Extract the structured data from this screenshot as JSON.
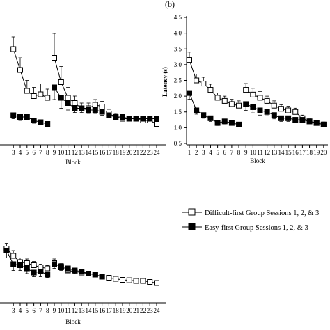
{
  "panel_b_label": "(b)",
  "legend": {
    "difficult": "Difficult-first Group Sessions 1, 2, & 3",
    "easy": "Easy-first Group Sessions 1, 2, & 3"
  },
  "colors": {
    "ink": "#000000",
    "open_fill": "#ffffff",
    "filled": "#000000"
  },
  "chart_data": [
    {
      "id": "panel-a-top",
      "type": "line",
      "xlabel": "Block",
      "ylabel": "",
      "xlim": [
        1,
        24
      ],
      "ylim": [
        0.5,
        4.5
      ],
      "x_ticks_shown": [
        3,
        4,
        5,
        6,
        7,
        8,
        9,
        10,
        11,
        12,
        13,
        14,
        15,
        16,
        17,
        18,
        19,
        20,
        21,
        22,
        23,
        24
      ],
      "series": [
        {
          "name": "Difficult-first Group Sessions 1, 2, & 3",
          "marker": "open-square",
          "segments": [
            {
              "x": [
                3,
                4,
                5,
                6,
                7,
                8
              ],
              "y": [
                3.25,
                2.65,
                2.05,
                1.9,
                1.95,
                1.85
              ],
              "err": [
                0.35,
                0.35,
                0.3,
                0.25,
                0.3,
                0.25
              ]
            },
            {
              "x": [
                9,
                10,
                11,
                12,
                13,
                14,
                15,
                16
              ],
              "y": [
                3.0,
                2.3,
                1.85,
                1.7,
                1.55,
                1.55,
                1.65,
                1.6
              ],
              "err": [
                0.7,
                0.45,
                0.3,
                0.2,
                0.15,
                0.15,
                0.15,
                0.15
              ]
            },
            {
              "x": [
                17,
                18,
                19,
                20,
                21,
                22,
                23,
                24
              ],
              "y": [
                1.4,
                1.3,
                1.25,
                1.25,
                1.25,
                1.2,
                1.2,
                1.1
              ],
              "err": [
                0.12,
                0.1,
                0.08,
                0.08,
                0.08,
                0.07,
                0.07,
                0.07
              ]
            }
          ]
        },
        {
          "name": "Easy-first Group Sessions 1, 2, & 3",
          "marker": "filled-square",
          "segments": [
            {
              "x": [
                3,
                4,
                5,
                6,
                7,
                8
              ],
              "y": [
                1.35,
                1.3,
                1.3,
                1.2,
                1.15,
                1.1
              ],
              "err": [
                0.1,
                0.1,
                0.08,
                0.08,
                0.07,
                0.07
              ]
            },
            {
              "x": [
                9,
                10,
                11,
                12,
                13,
                14,
                15,
                16
              ],
              "y": [
                2.15,
                1.85,
                1.7,
                1.55,
                1.55,
                1.5,
                1.5,
                1.45
              ],
              "err": [
                0.35,
                0.3,
                0.2,
                0.12,
                0.12,
                0.1,
                0.1,
                0.1
              ]
            },
            {
              "x": [
                17,
                18,
                19,
                20,
                21,
                22,
                23,
                24
              ],
              "y": [
                1.35,
                1.3,
                1.3,
                1.25,
                1.25,
                1.25,
                1.25,
                1.25
              ],
              "err": [
                0.08,
                0.07,
                0.07,
                0.06,
                0.06,
                0.06,
                0.06,
                0.06
              ]
            }
          ]
        }
      ]
    },
    {
      "id": "panel-b",
      "type": "line",
      "xlabel": "Block",
      "ylabel": "Latency (s)",
      "xlim": [
        1,
        20
      ],
      "ylim": [
        0.5,
        4.5
      ],
      "x_ticks": [
        1,
        2,
        3,
        4,
        5,
        6,
        7,
        8,
        9,
        10,
        11,
        12,
        13,
        14,
        15,
        16,
        17,
        18,
        19,
        20
      ],
      "y_ticks": [
        "0.5",
        "1.0",
        "1.5",
        "2.0",
        "2.5",
        "3.0",
        "3.5",
        "4.0",
        "4.5"
      ],
      "y_tick_values": [
        0.5,
        1.0,
        1.5,
        2.0,
        2.5,
        3.0,
        3.5,
        4.0,
        4.5
      ],
      "series": [
        {
          "name": "Difficult-first Group Sessions 1, 2, & 3",
          "marker": "open-square",
          "segments": [
            {
              "x": [
                1,
                2,
                3,
                4,
                5,
                6,
                7,
                8
              ],
              "y": [
                3.15,
                2.5,
                2.4,
                2.2,
                1.95,
                1.85,
                1.75,
                1.7
              ],
              "err": [
                0.25,
                0.2,
                0.2,
                0.18,
                0.15,
                0.15,
                0.15,
                0.15
              ]
            },
            {
              "x": [
                9,
                10,
                11,
                12,
                13,
                14,
                15,
                16,
                17,
                18,
                19,
                20
              ],
              "y": [
                2.2,
                2.05,
                1.95,
                1.85,
                1.7,
                1.6,
                1.55,
                1.5,
                1.3,
                1.2,
                1.15,
                1.1
              ],
              "err": [
                0.2,
                0.2,
                0.2,
                0.15,
                0.15,
                0.13,
                0.13,
                0.12,
                0.1,
                0.08,
                0.08,
                0.08
              ]
            }
          ]
        },
        {
          "name": "Easy-first Group Sessions 1, 2, & 3",
          "marker": "filled-square",
          "segments": [
            {
              "x": [
                1,
                2,
                3,
                4,
                5,
                6,
                7,
                8
              ],
              "y": [
                2.1,
                1.55,
                1.4,
                1.3,
                1.15,
                1.2,
                1.15,
                1.1
              ],
              "err": [
                0.2,
                0.12,
                0.1,
                0.1,
                0.08,
                0.08,
                0.07,
                0.07
              ]
            },
            {
              "x": [
                9,
                10,
                11,
                12,
                13,
                14,
                15,
                16,
                17,
                18,
                19,
                20
              ],
              "y": [
                1.75,
                1.65,
                1.55,
                1.5,
                1.4,
                1.3,
                1.3,
                1.25,
                1.25,
                1.2,
                1.15,
                1.1
              ],
              "err": [
                0.2,
                0.18,
                0.15,
                0.12,
                0.12,
                0.1,
                0.1,
                0.1,
                0.08,
                0.07,
                0.07,
                0.06
              ]
            }
          ]
        }
      ]
    },
    {
      "id": "panel-c-bottom",
      "type": "line",
      "xlabel": "Block",
      "ylabel": "",
      "xlim": [
        1,
        24
      ],
      "ylim": [
        0.5,
        4.5
      ],
      "x_ticks_shown": [
        3,
        4,
        5,
        6,
        7,
        8,
        9,
        10,
        11,
        12,
        13,
        14,
        15,
        16,
        17,
        18,
        19,
        20,
        21,
        22,
        23,
        24
      ],
      "series": [
        {
          "name": "Difficult-first Group Sessions 1, 2, & 3",
          "marker": "open-square",
          "segments": [
            {
              "x": [
                2,
                3,
                4,
                5,
                6,
                7,
                8
              ],
              "y": [
                3.1,
                2.75,
                2.45,
                2.4,
                2.3,
                2.2,
                2.15
              ],
              "err": [
                0.25,
                0.25,
                0.2,
                0.2,
                0.18,
                0.15,
                0.15
              ]
            },
            {
              "x": [
                9,
                10,
                11,
                12,
                13,
                14,
                15,
                16
              ],
              "y": [
                2.4,
                2.2,
                2.05,
                2.0,
                1.95,
                1.9,
                1.85,
                1.75
              ],
              "err": [
                0.2,
                0.18,
                0.15,
                0.15,
                0.12,
                0.12,
                0.1,
                0.1
              ]
            },
            {
              "x": [
                17,
                18,
                19,
                20,
                21,
                22,
                23,
                24
              ],
              "y": [
                1.7,
                1.65,
                1.6,
                1.58,
                1.55,
                1.55,
                1.5,
                1.45
              ],
              "err": [
                0.08,
                0.08,
                0.07,
                0.07,
                0.06,
                0.06,
                0.06,
                0.06
              ]
            }
          ]
        },
        {
          "name": "Easy-first Group Sessions 1, 2, & 3",
          "marker": "filled-square",
          "segments": [
            {
              "x": [
                2,
                3,
                4,
                5,
                6,
                7,
                8
              ],
              "y": [
                3.0,
                2.35,
                2.3,
                2.15,
                1.95,
                2.0,
                1.85
              ],
              "err": [
                0.35,
                0.3,
                0.25,
                0.25,
                0.2,
                0.25,
                0.15
              ]
            },
            {
              "x": [
                9,
                10,
                11,
                12,
                13,
                14,
                15,
                16
              ],
              "y": [
                2.35,
                2.25,
                2.15,
                2.05,
                2.0,
                1.9,
                1.85,
                1.75
              ],
              "err": [
                0.2,
                0.2,
                0.18,
                0.15,
                0.12,
                0.12,
                0.1,
                0.1
              ]
            }
          ]
        }
      ]
    }
  ]
}
